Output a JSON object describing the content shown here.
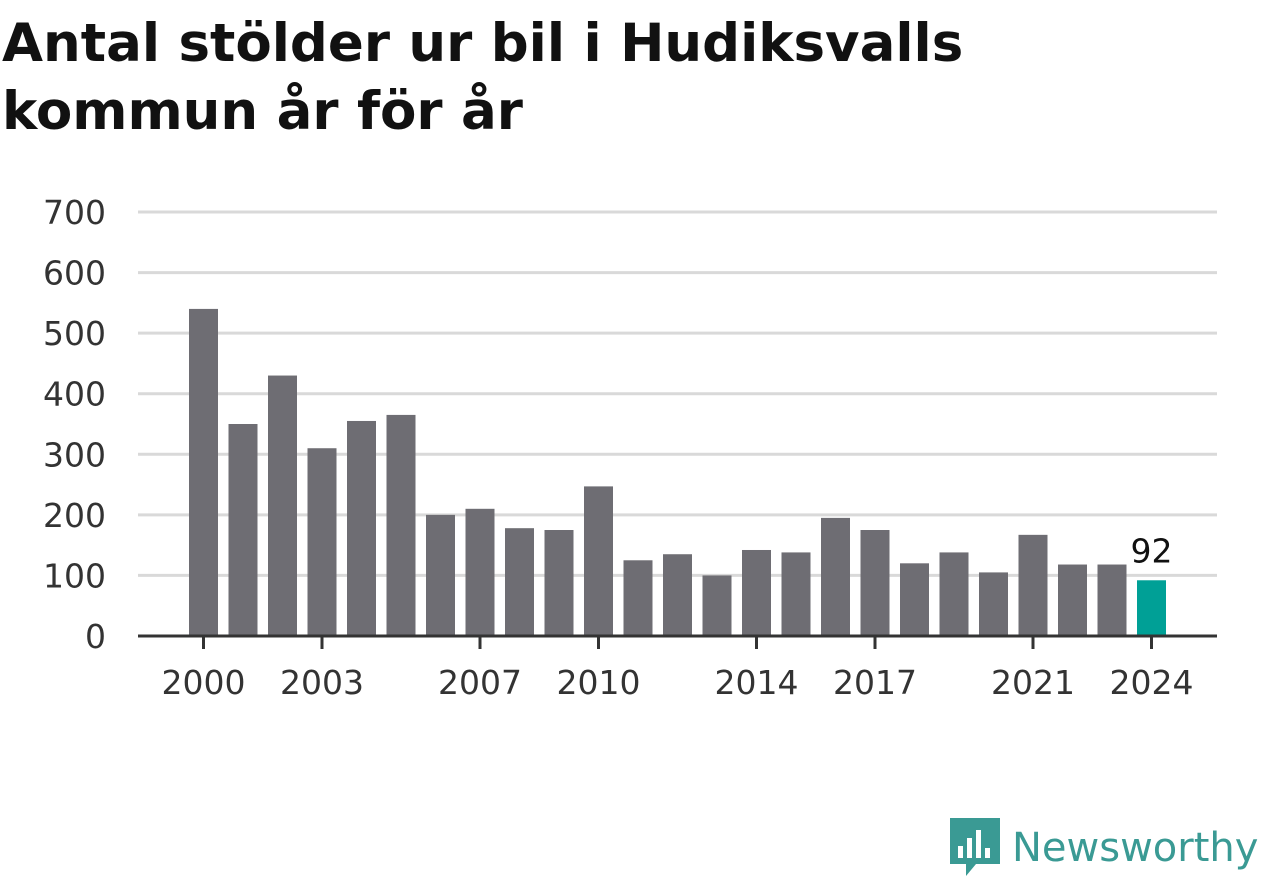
{
  "title": "Antal stölder ur bil i Hudiksvalls kommun år för år",
  "brand": {
    "name": "Newsworthy",
    "icon": "newsworthy-logo-icon",
    "color": "#3a9a94"
  },
  "colors": {
    "bar": "#6e6d73",
    "highlight": "#00a096",
    "grid": "#d9d9d9",
    "axis": "#333333"
  },
  "chart_data": {
    "type": "bar",
    "title": "Antal stölder ur bil i Hudiksvalls kommun år för år",
    "xlabel": "",
    "ylabel": "",
    "categories": [
      2000,
      2001,
      2002,
      2003,
      2004,
      2005,
      2006,
      2007,
      2008,
      2009,
      2010,
      2011,
      2012,
      2013,
      2014,
      2015,
      2016,
      2017,
      2018,
      2019,
      2020,
      2021,
      2022,
      2023,
      2024
    ],
    "values": [
      540,
      350,
      430,
      310,
      355,
      365,
      200,
      210,
      178,
      175,
      247,
      125,
      135,
      100,
      142,
      138,
      195,
      175,
      120,
      138,
      105,
      167,
      118,
      118,
      92
    ],
    "x_tick_labels": [
      "2000",
      "2003",
      "2007",
      "2010",
      "2014",
      "2017",
      "2021",
      "2024"
    ],
    "y_ticks": [
      0,
      100,
      200,
      300,
      400,
      500,
      600,
      700
    ],
    "ylim": [
      0,
      700
    ],
    "grid": true,
    "highlight_category": 2024,
    "data_labels": [
      {
        "category": 2024,
        "text": "92"
      }
    ]
  }
}
